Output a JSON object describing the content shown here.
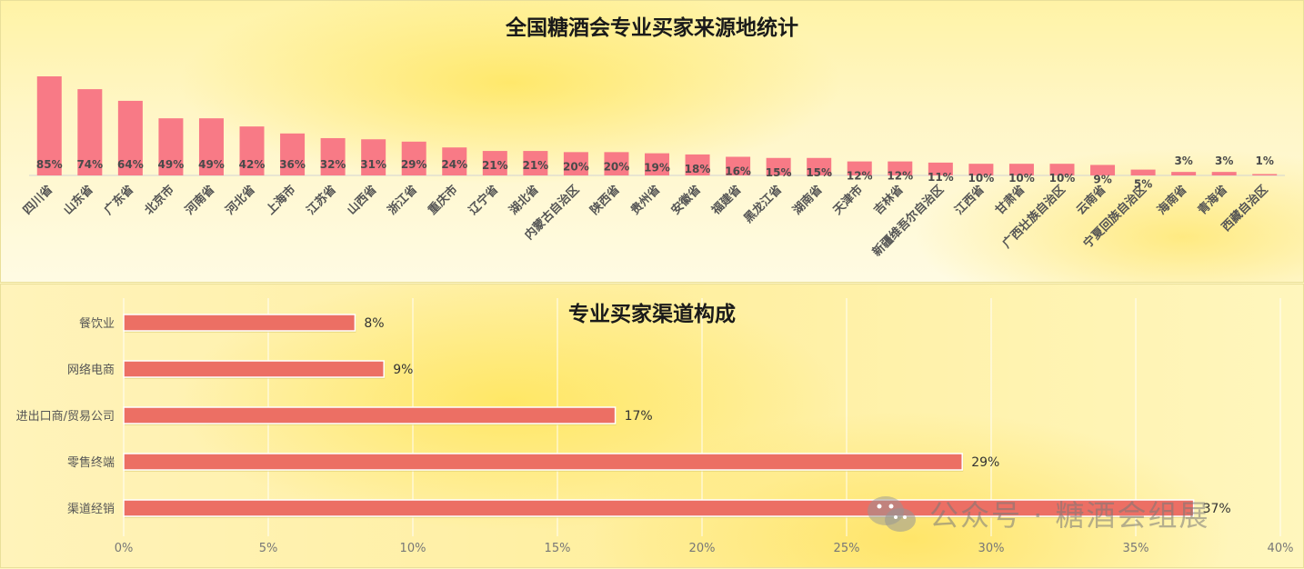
{
  "watermark": {
    "text": "公众号 · 糖酒会组展",
    "icon": "wechat-icon"
  },
  "chart_data": [
    {
      "type": "bar",
      "title": "全国糖酒会专业买家来源地统计",
      "categories": [
        "四川省",
        "山东省",
        "广东省",
        "北京市",
        "河南省",
        "河北省",
        "上海市",
        "江苏省",
        "山西省",
        "浙江省",
        "重庆市",
        "辽宁省",
        "湖北省",
        "内蒙古自治区",
        "陕西省",
        "贵州省",
        "安徽省",
        "福建省",
        "黑龙江省",
        "湖南省",
        "天津市",
        "吉林省",
        "新疆维吾尔自治区",
        "江西省",
        "甘肃省",
        "广西壮族自治区",
        "云南省",
        "宁夏回族自治区",
        "海南省",
        "青海省",
        "西藏自治区"
      ],
      "values": [
        85,
        74,
        64,
        49,
        49,
        42,
        36,
        32,
        31,
        29,
        24,
        21,
        21,
        20,
        20,
        19,
        18,
        16,
        15,
        15,
        12,
        12,
        11,
        10,
        10,
        10,
        9,
        5,
        3,
        3,
        1
      ],
      "value_suffix": "%",
      "bar_color": "#f87a86"
    },
    {
      "type": "bar",
      "orientation": "horizontal",
      "title": "专业买家渠道构成",
      "categories": [
        "餐饮业",
        "网络电商",
        "进出口商/贸易公司",
        "零售终端",
        "渠道经销"
      ],
      "values": [
        8,
        9,
        17,
        29,
        37
      ],
      "value_suffix": "%",
      "xlim": [
        0,
        40
      ],
      "xticks": [
        "0%",
        "5%",
        "10%",
        "15%",
        "20%",
        "25%",
        "30%",
        "35%",
        "40%"
      ],
      "bar_color": "#ec6f64"
    }
  ]
}
